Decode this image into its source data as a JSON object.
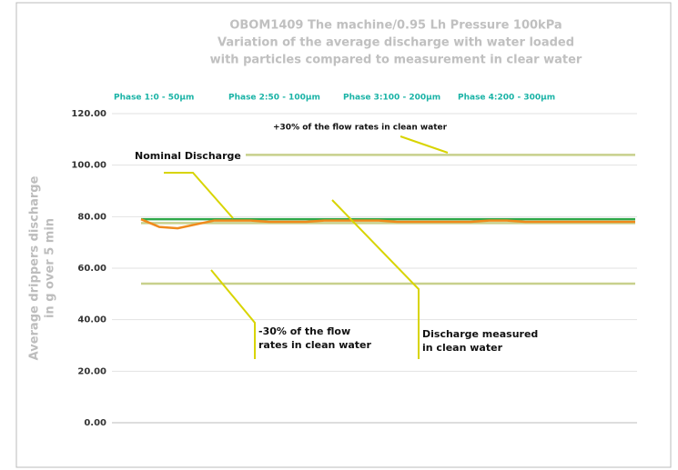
{
  "chart_data": {
    "type": "line",
    "title": [
      "OBOM1409 The machine/0.95 Lh Pressure 100kPa",
      "Variation of the average discharge with water loaded",
      "with particles compared to measurement in clear water"
    ],
    "phases": [
      "Phase 1:0 - 50µm",
      "Phase 2:50 - 100µm",
      "Phase 3:100 - 200µm",
      "Phase 4:200 - 300µm"
    ],
    "ylabel": [
      "Average drippers discharge",
      "in g over 5 min"
    ],
    "ylim": [
      0,
      120
    ],
    "yticks": [
      {
        "value": 0,
        "label": "0.00"
      },
      {
        "value": 20,
        "label": "20.00"
      },
      {
        "value": 40,
        "label": "40.00"
      },
      {
        "value": 60,
        "label": "60.00"
      },
      {
        "value": 80,
        "label": "80.00"
      },
      {
        "value": 100,
        "label": "100.00"
      },
      {
        "value": 120,
        "label": "120.00"
      }
    ],
    "grid": true,
    "categories": [
      null,
      null,
      null,
      null,
      null,
      null,
      null,
      null,
      null,
      null,
      null,
      null,
      null,
      null,
      null,
      null,
      null,
      null,
      null,
      null,
      null,
      null,
      null,
      null,
      null,
      null,
      null,
      null
    ],
    "series": [
      {
        "color": "#f08a1c",
        "values": [
          79,
          76,
          75.5,
          77,
          78.5,
          78.5,
          78.5,
          78,
          78,
          78,
          78.5,
          78.5,
          78.5,
          78.5,
          78,
          78,
          78,
          78,
          78,
          78.5,
          78.5,
          78,
          78,
          78,
          78,
          78,
          78,
          78
        ]
      }
    ],
    "reference_lines": [
      {
        "value": 104,
        "color": "#c8d08c"
      },
      {
        "value": 79,
        "color": "#2fa84a"
      },
      {
        "value": 77.5,
        "color": "#c8d08c"
      },
      {
        "value": 54,
        "color": "#c8d08c"
      }
    ],
    "annotations": [
      {
        "text": [
          "+30% of the flow rates in clean water"
        ]
      },
      {
        "text": [
          "Nominal Discharge"
        ]
      },
      {
        "text": [
          "-30% of the flow",
          "rates in clean water"
        ]
      },
      {
        "text": [
          "Discharge measured",
          "in clean water"
        ]
      }
    ]
  }
}
